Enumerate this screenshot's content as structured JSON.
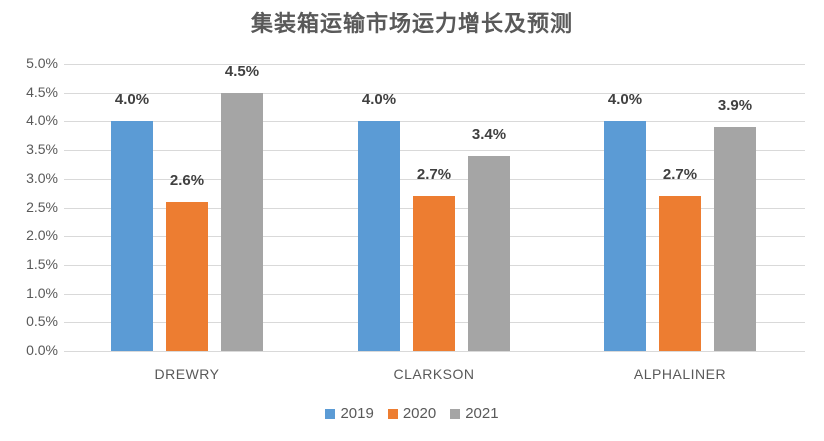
{
  "chart_data": {
    "type": "bar",
    "title": "集装箱运输市场运力增长及预测",
    "xlabel": "",
    "ylabel": "",
    "categories": [
      "DREWRY",
      "CLARKSON",
      "ALPHALINER"
    ],
    "series": [
      {
        "name": "2019",
        "color": "#5b9bd5",
        "values": [
          4.0,
          4.0,
          4.0
        ],
        "labels": [
          "4.0%",
          "4.0%",
          "4.0%"
        ]
      },
      {
        "name": "2020",
        "color": "#ed7d31",
        "values": [
          2.6,
          2.7,
          2.7
        ],
        "labels": [
          "2.6%",
          "2.7%",
          "2.7%"
        ]
      },
      {
        "name": "2021",
        "color": "#a5a5a5",
        "values": [
          4.5,
          3.4,
          3.9
        ],
        "labels": [
          "4.5%",
          "3.4%",
          "3.9%"
        ]
      }
    ],
    "ylim": [
      0,
      5.0
    ],
    "yticks": [
      "0.0%",
      "0.5%",
      "1.0%",
      "1.5%",
      "2.0%",
      "2.5%",
      "3.0%",
      "3.5%",
      "4.0%",
      "4.5%",
      "5.0%"
    ],
    "grid": true,
    "legend_position": "bottom"
  }
}
